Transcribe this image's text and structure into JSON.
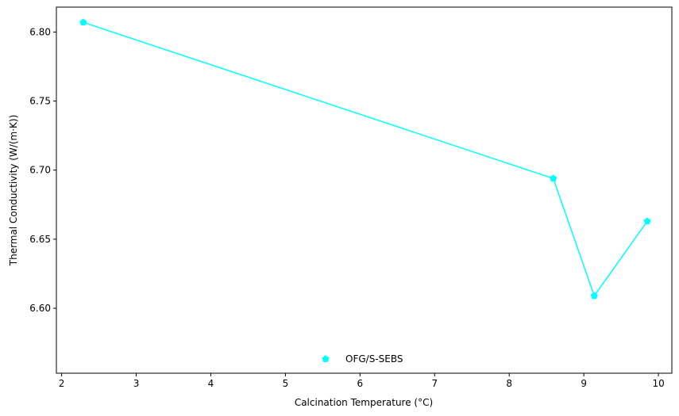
{
  "chart_data": {
    "type": "line",
    "title": "",
    "xlabel": "Calcination Temperature (°C)",
    "ylabel": "Thermal Conductivity (W/(m·K))",
    "xlim": [
      1.93,
      10.18
    ],
    "ylim": [
      6.553,
      6.818
    ],
    "xticks": [
      2,
      3,
      4,
      5,
      6,
      7,
      8,
      9,
      10
    ],
    "yticks": [
      6.6,
      6.65,
      6.7,
      6.75,
      6.8
    ],
    "xtick_labels": [
      "2",
      "3",
      "4",
      "5",
      "6",
      "7",
      "8",
      "9",
      "10"
    ],
    "ytick_labels": [
      "6.60",
      "6.65",
      "6.70",
      "6.75",
      "6.80"
    ],
    "grid": false,
    "legend_position": "lower center",
    "series": [
      {
        "name": "OFG/S-SEBS",
        "color": "#00ffff",
        "marker": "pentagon",
        "x": [
          2.29,
          8.59,
          9.14,
          9.85
        ],
        "y": [
          6.807,
          6.694,
          6.609,
          6.663
        ]
      }
    ]
  }
}
